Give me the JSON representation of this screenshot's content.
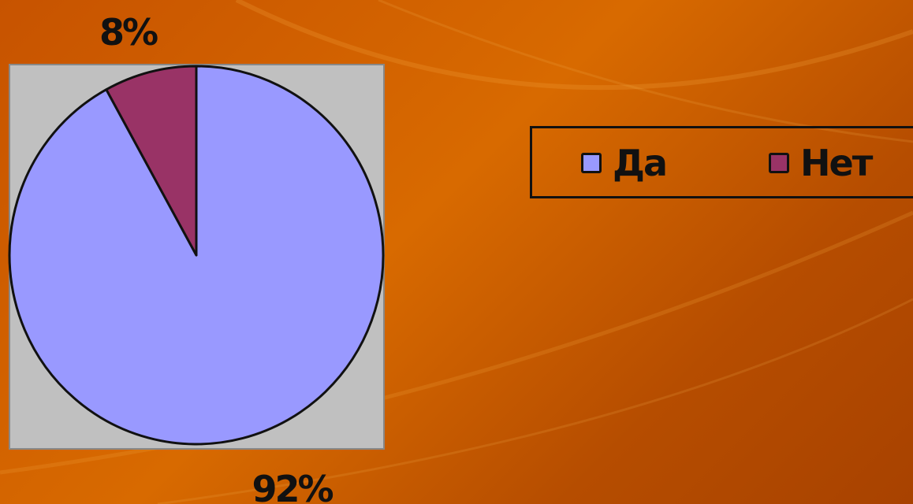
{
  "chart_data": {
    "type": "pie",
    "categories": [
      "Да",
      "Нет"
    ],
    "values": [
      92,
      8
    ],
    "data_labels": [
      "92%",
      "8%"
    ],
    "colors": [
      "#9999ff",
      "#993366"
    ],
    "plot_background": "#c0c0c0",
    "legend": {
      "position": "right",
      "entries": [
        "Да",
        "Нет"
      ]
    },
    "title": ""
  }
}
